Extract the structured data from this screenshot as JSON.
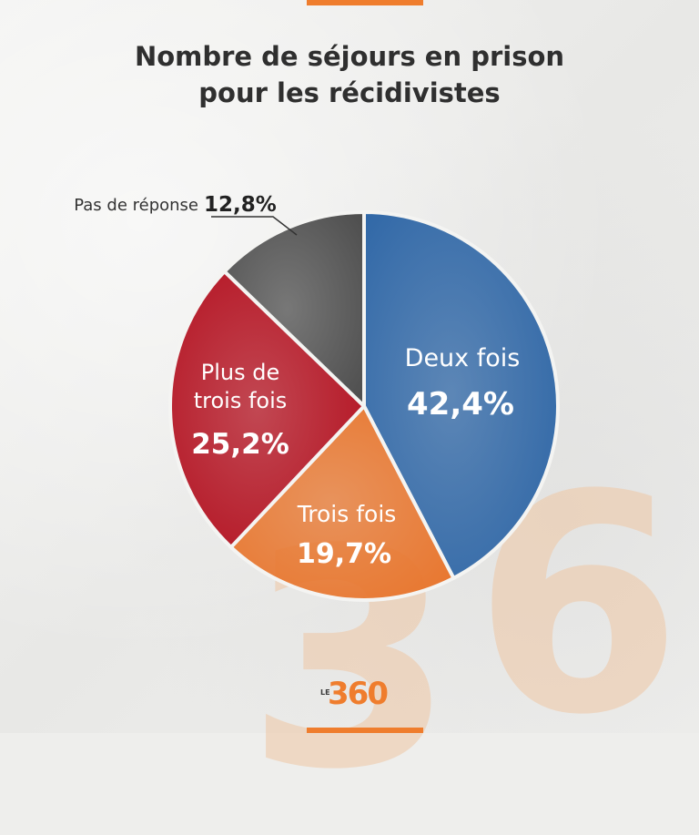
{
  "title_line1": "Nombre de séjours en prison",
  "title_line2": "pour les récidivistes",
  "logo": {
    "prefix": "LE",
    "number": "360"
  },
  "chart_data": {
    "type": "pie",
    "title": "Nombre de séjours en prison pour les récidivistes",
    "slices": [
      {
        "label": "Deux fois",
        "value": 42.4,
        "value_label": "42,4%",
        "color": "#2e66a6"
      },
      {
        "label": "Trois fois",
        "value": 19.7,
        "value_label": "19,7%",
        "color": "#e8762e"
      },
      {
        "label": "Plus de trois fois",
        "label_lines": [
          "Plus de",
          "trois fois"
        ],
        "value": 25.2,
        "value_label": "25,2%",
        "color": "#b3101f"
      },
      {
        "label": "Pas de réponse",
        "value": 12.8,
        "value_label": "12,8%",
        "color": "#4f4f4f"
      }
    ]
  }
}
